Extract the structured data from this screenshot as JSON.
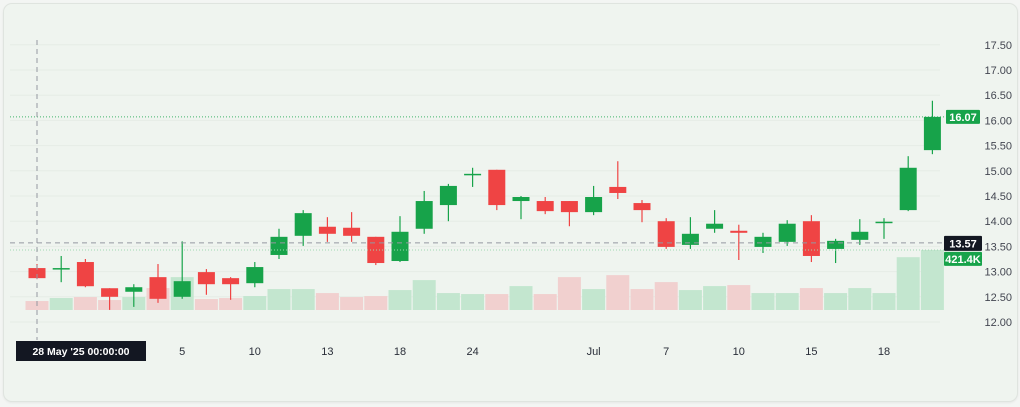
{
  "chart_data": {
    "type": "candlestick",
    "title": "",
    "xlabel": "",
    "ylabel": "",
    "ylim": [
      12.0,
      17.5
    ],
    "y_ticks": [
      "12.00",
      "12.50",
      "13.00",
      "13.50",
      "14.00",
      "14.50",
      "15.00",
      "15.50",
      "16.00",
      "16.50",
      "17.00",
      "17.50"
    ],
    "y_tick_values": [
      12.0,
      12.5,
      13.0,
      13.5,
      14.0,
      14.5,
      15.0,
      15.5,
      16.0,
      16.5,
      17.0,
      17.5
    ],
    "x_ticks": [
      {
        "index": 6,
        "label": "5"
      },
      {
        "index": 9,
        "label": "10"
      },
      {
        "index": 12,
        "label": "13"
      },
      {
        "index": 15,
        "label": "18"
      },
      {
        "index": 18,
        "label": "24"
      },
      {
        "index": 23,
        "label": "Jul"
      },
      {
        "index": 26,
        "label": "7"
      },
      {
        "index": 29,
        "label": "10"
      },
      {
        "index": 32,
        "label": "15"
      },
      {
        "index": 35,
        "label": "18"
      }
    ],
    "crosshair": {
      "index": 0,
      "label": "28 May '25   00:00:00",
      "price": 13.57,
      "price_label": "13.57"
    },
    "last_price": {
      "value": 16.07,
      "label": "16.07"
    },
    "last_volume_label": "421.4K",
    "grid": true,
    "colors": {
      "up": "#17a34a",
      "down": "#ef4444",
      "up_volume": "#c3e6cf",
      "down_volume": "#f1d0cf",
      "crosshair_label_bg": "#131722"
    },
    "ohlc": [
      [
        13.07,
        13.15,
        12.85,
        12.87
      ],
      [
        13.05,
        13.31,
        12.79,
        13.07
      ],
      [
        13.19,
        13.25,
        12.69,
        12.71
      ],
      [
        12.67,
        12.67,
        12.24,
        12.5
      ],
      [
        12.6,
        12.75,
        12.3,
        12.69
      ],
      [
        12.89,
        13.15,
        12.38,
        12.46
      ],
      [
        12.5,
        13.6,
        12.46,
        12.81
      ],
      [
        12.99,
        13.05,
        12.54,
        12.75
      ],
      [
        12.87,
        12.89,
        12.44,
        12.75
      ],
      [
        12.77,
        13.19,
        12.69,
        13.09
      ],
      [
        13.33,
        13.85,
        13.25,
        13.69
      ],
      [
        13.71,
        14.22,
        13.51,
        14.16
      ],
      [
        13.89,
        14.08,
        13.59,
        13.75
      ],
      [
        13.87,
        14.18,
        13.59,
        13.71
      ],
      [
        13.69,
        13.69,
        13.13,
        13.17
      ],
      [
        13.21,
        14.1,
        13.19,
        13.79
      ],
      [
        13.85,
        14.6,
        13.75,
        14.4
      ],
      [
        14.32,
        14.74,
        14.0,
        14.7
      ],
      [
        14.92,
        15.06,
        14.68,
        14.94
      ],
      [
        15.02,
        15.02,
        14.22,
        14.32
      ],
      [
        14.4,
        14.5,
        14.04,
        14.48
      ],
      [
        14.4,
        14.48,
        14.14,
        14.2
      ],
      [
        14.4,
        14.4,
        13.9,
        14.18
      ],
      [
        14.18,
        14.7,
        14.12,
        14.48
      ],
      [
        14.68,
        15.19,
        14.44,
        14.56
      ],
      [
        14.36,
        14.42,
        13.98,
        14.22
      ],
      [
        14.0,
        14.06,
        13.45,
        13.49
      ],
      [
        13.53,
        14.08,
        13.45,
        13.75
      ],
      [
        13.85,
        14.22,
        13.77,
        13.95
      ],
      [
        13.81,
        13.93,
        13.23,
        13.77
      ],
      [
        13.49,
        13.77,
        13.37,
        13.69
      ],
      [
        13.59,
        14.02,
        13.51,
        13.95
      ],
      [
        14.0,
        14.12,
        13.19,
        13.31
      ],
      [
        13.45,
        13.65,
        13.17,
        13.61
      ],
      [
        13.63,
        14.04,
        13.53,
        13.79
      ],
      [
        13.97,
        14.06,
        13.65,
        13.99
      ],
      [
        14.22,
        15.29,
        14.2,
        15.06
      ],
      [
        15.41,
        16.39,
        15.33,
        16.07
      ]
    ],
    "volume_k": [
      63,
      84,
      91,
      70,
      91,
      154,
      231,
      77,
      84,
      98,
      147,
      147,
      119,
      91,
      98,
      140,
      210,
      119,
      112,
      112,
      168,
      112,
      231,
      147,
      245,
      147,
      196,
      140,
      168,
      175,
      119,
      119,
      154,
      119,
      154,
      119,
      371,
      421.4
    ]
  }
}
